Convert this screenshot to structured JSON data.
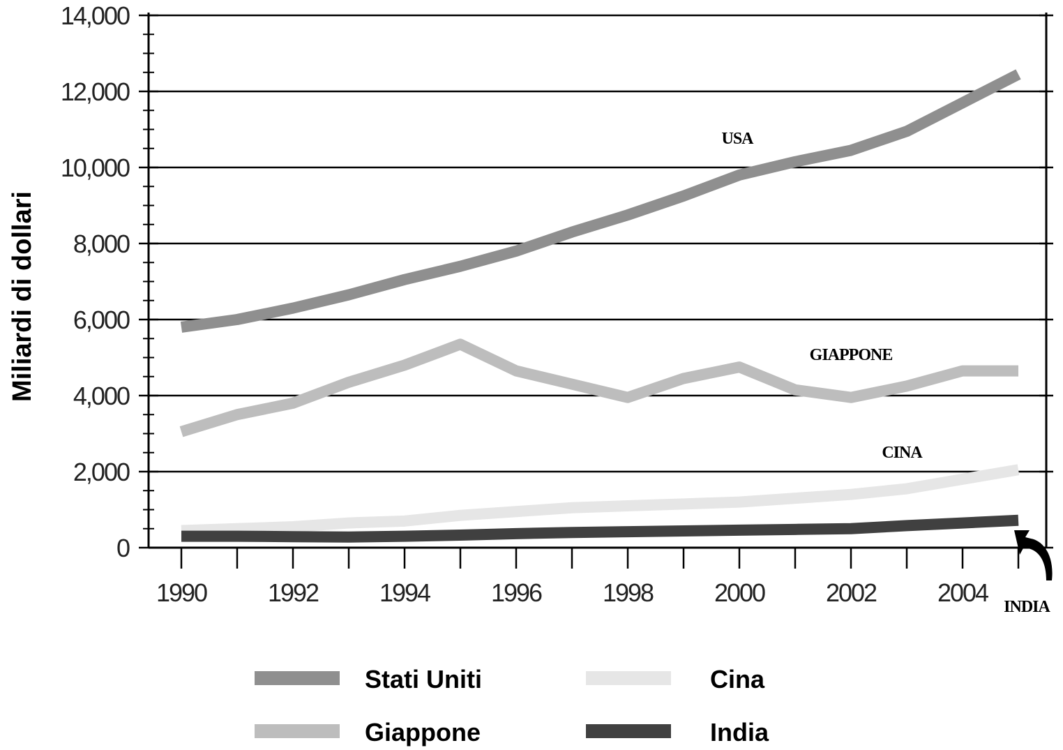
{
  "chart_data": {
    "type": "line",
    "ylabel": "Miliardi di dollari",
    "xlabel": "",
    "ylim": [
      0,
      14000
    ],
    "xlim": [
      1990,
      2005
    ],
    "x": [
      1990,
      1991,
      1992,
      1993,
      1994,
      1995,
      1996,
      1997,
      1998,
      1999,
      2000,
      2001,
      2002,
      2003,
      2004,
      2005
    ],
    "x_ticks": [
      "1990",
      "1992",
      "1994",
      "1996",
      "1998",
      "2000",
      "2002",
      "2004"
    ],
    "y_ticks": [
      "0",
      "2,000",
      "4,000",
      "6,000",
      "8,000",
      "10,000",
      "12,000",
      "14,000"
    ],
    "grid": "horizontal",
    "legend_position": "bottom",
    "series": [
      {
        "name": "Stati Uniti",
        "color": "#8f8f8f",
        "values": [
          5800,
          6000,
          6300,
          6650,
          7050,
          7400,
          7800,
          8300,
          8750,
          9250,
          9800,
          10150,
          10450,
          10950,
          11700,
          12450
        ]
      },
      {
        "name": "Giappone",
        "color": "#bdbdbd",
        "values": [
          3050,
          3500,
          3800,
          4350,
          4800,
          5350,
          4650,
          4300,
          3950,
          4450,
          4750,
          4150,
          3950,
          4250,
          4650,
          4650
        ]
      },
      {
        "name": "Cina",
        "color": "#e6e6e6",
        "values": [
          450,
          500,
          550,
          650,
          700,
          850,
          950,
          1050,
          1100,
          1150,
          1200,
          1300,
          1400,
          1550,
          1800,
          2050
        ]
      },
      {
        "name": "India",
        "color": "#404040",
        "values": [
          300,
          300,
          290,
          280,
          300,
          330,
          370,
          400,
          420,
          440,
          460,
          480,
          500,
          580,
          650,
          720
        ]
      }
    ],
    "annotations": [
      {
        "text": "USA",
        "series": "Stati Uniti"
      },
      {
        "text": "GIAPPONE",
        "series": "Giappone"
      },
      {
        "text": "CINA",
        "series": "Cina"
      },
      {
        "text": "INDIA",
        "series": "India"
      }
    ]
  }
}
